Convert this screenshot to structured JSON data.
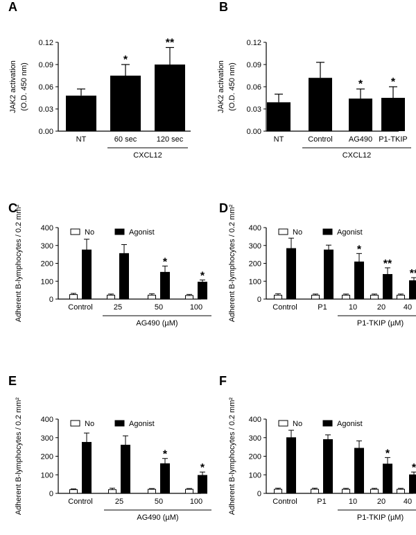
{
  "figure_title": "",
  "chart_data": [
    {
      "panel": "A",
      "type": "bar",
      "ylabel": [
        "JAK2 activation",
        "(O.D. 450 nm)"
      ],
      "ylim": [
        0,
        0.12
      ],
      "yticks": [
        "0.00",
        "0.03",
        "0.06",
        "0.09",
        "0.12"
      ],
      "categories": [
        "NT",
        "60 sec",
        "120 sec"
      ],
      "values": [
        0.048,
        0.075,
        0.09
      ],
      "errors": [
        0.009,
        0.015,
        0.023
      ],
      "significance": [
        "",
        "*",
        "**"
      ],
      "groups": [
        {
          "label": "CXCL12",
          "from": 1,
          "to": 2
        }
      ]
    },
    {
      "panel": "B",
      "type": "bar",
      "ylabel": [
        "JAK2 activation",
        "(O.D. 450 nm)"
      ],
      "ylim": [
        0,
        0.12
      ],
      "yticks": [
        "0.00",
        "0.03",
        "0.06",
        "0.09",
        "0.12"
      ],
      "categories": [
        "NT",
        "Control",
        "AG490",
        "P1-TKIP"
      ],
      "values": [
        0.039,
        0.072,
        0.044,
        0.045
      ],
      "errors": [
        0.011,
        0.021,
        0.013,
        0.015
      ],
      "significance": [
        "",
        "",
        "*",
        "*"
      ],
      "groups": [
        {
          "label": "CXCL12",
          "from": 1,
          "to": 3
        }
      ]
    },
    {
      "panel": "C",
      "type": "bar",
      "ylabel": [
        "Adherent B-lymphocytes / 0.2 mm²"
      ],
      "ylim": [
        0,
        400
      ],
      "yticks": [
        "0",
        "100",
        "200",
        "300",
        "400"
      ],
      "categories": [
        "Control",
        "25",
        "50",
        "100"
      ],
      "legend": [
        "No",
        "Agonist"
      ],
      "series": [
        {
          "name": "No",
          "values": [
            25,
            22,
            22,
            20
          ],
          "errors": [
            7,
            6,
            8,
            6
          ]
        },
        {
          "name": "Agonist",
          "values": [
            275,
            255,
            150,
            95
          ],
          "errors": [
            60,
            50,
            35,
            12
          ]
        }
      ],
      "significance": [
        "",
        "",
        "*",
        "*"
      ],
      "groups": [
        {
          "label": "AG490 (µM)",
          "from": 1,
          "to": 3
        }
      ]
    },
    {
      "panel": "D",
      "type": "bar",
      "ylabel": [
        "Adherent B-lymphocytes / 0.2 mm²"
      ],
      "ylim": [
        0,
        400
      ],
      "yticks": [
        "0",
        "100",
        "200",
        "300",
        "400"
      ],
      "categories": [
        "Control",
        "P1",
        "10",
        "20",
        "40"
      ],
      "legend": [
        "No",
        "Agonist"
      ],
      "series": [
        {
          "name": "No",
          "values": [
            22,
            22,
            22,
            22,
            22
          ],
          "errors": [
            8,
            6,
            6,
            6,
            6
          ]
        },
        {
          "name": "Agonist",
          "values": [
            283,
            275,
            208,
            138,
            103
          ],
          "errors": [
            58,
            27,
            47,
            37,
            17
          ]
        }
      ],
      "significance": [
        "",
        "",
        "*",
        "**",
        "**"
      ],
      "groups": [
        {
          "label": "P1-TKIP (µM)",
          "from": 2,
          "to": 4
        }
      ]
    },
    {
      "panel": "E",
      "type": "bar",
      "ylabel": [
        "Adherent B-lymphocytes / 0.2 mm²"
      ],
      "ylim": [
        0,
        400
      ],
      "yticks": [
        "0",
        "100",
        "200",
        "300",
        "400"
      ],
      "categories": [
        "Control",
        "25",
        "50",
        "100"
      ],
      "legend": [
        "No",
        "Agonist"
      ],
      "series": [
        {
          "name": "No",
          "values": [
            20,
            20,
            22,
            22
          ],
          "errors": [
            4,
            8,
            4,
            4
          ]
        },
        {
          "name": "Agonist",
          "values": [
            275,
            260,
            160,
            97
          ],
          "errors": [
            50,
            50,
            28,
            18
          ]
        }
      ],
      "significance": [
        "",
        "",
        "*",
        "*"
      ],
      "groups": [
        {
          "label": "AG490 (µM)",
          "from": 1,
          "to": 3
        }
      ]
    },
    {
      "panel": "F",
      "type": "bar",
      "ylabel": [
        "Adherent B-lymphocytes / 0.2 mm²"
      ],
      "ylim": [
        0,
        400
      ],
      "yticks": [
        "0",
        "100",
        "200",
        "300",
        "400"
      ],
      "categories": [
        "Control",
        "P1",
        "10",
        "20",
        "40"
      ],
      "legend": [
        "No",
        "Agonist"
      ],
      "series": [
        {
          "name": "No",
          "values": [
            22,
            22,
            22,
            22,
            22
          ],
          "errors": [
            6,
            6,
            5,
            5,
            5
          ]
        },
        {
          "name": "Agonist",
          "values": [
            300,
            290,
            243,
            158,
            100
          ],
          "errors": [
            40,
            25,
            40,
            35,
            15
          ]
        }
      ],
      "significance": [
        "",
        "",
        "",
        "*",
        "*"
      ],
      "groups": [
        {
          "label": "P1-TKIP (µM)",
          "from": 2,
          "to": 4
        }
      ]
    }
  ]
}
